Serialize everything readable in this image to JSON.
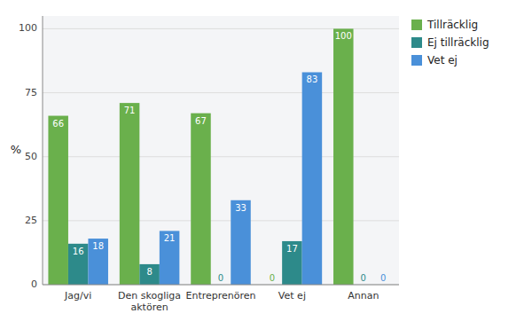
{
  "chart_data": {
    "type": "bar",
    "ylabel": "%",
    "categories": [
      "Jag/vi",
      "Den skogliga\naktören",
      "Entreprenören",
      "Vet ej",
      "Annan"
    ],
    "series": [
      {
        "name": "Tillräcklig",
        "color": "#6ab04c",
        "values": [
          66,
          71,
          67,
          0,
          100
        ]
      },
      {
        "name": "Ej tillräcklig",
        "color": "#2d8a8a",
        "values": [
          16,
          8,
          0,
          17,
          0
        ]
      },
      {
        "name": "Vet ej",
        "color": "#4a90d9",
        "values": [
          18,
          21,
          33,
          83,
          0
        ]
      }
    ],
    "ylim": [
      0,
      105
    ],
    "yticks": [
      0,
      25,
      50,
      75,
      100
    ],
    "grid": true,
    "legend": "upper right",
    "data_labels": true
  }
}
